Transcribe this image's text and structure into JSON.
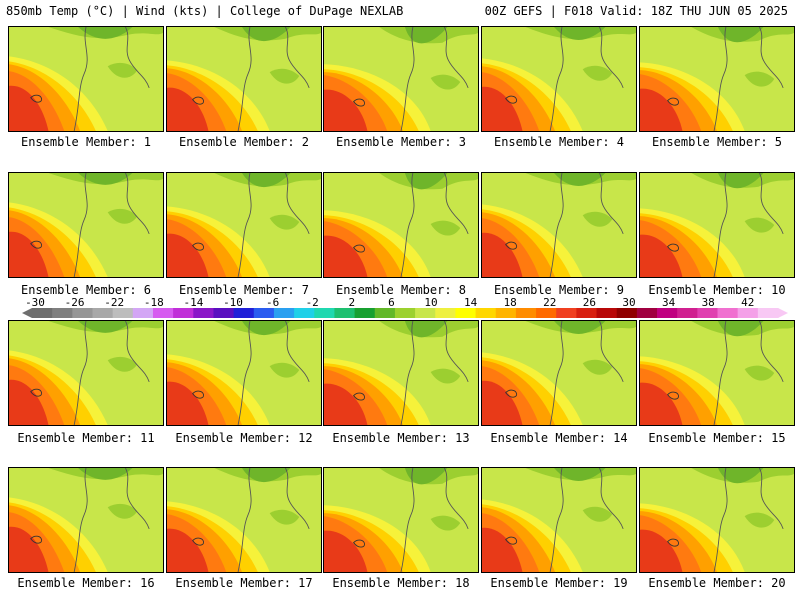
{
  "header": {
    "left": "850mb Temp (°C) | Wind (kts) | College of DuPage NEXLAB",
    "right": "00Z GEFS | F018 Valid: 18Z THU JUN 05 2025"
  },
  "members": [
    "Ensemble Member: 1",
    "Ensemble Member: 2",
    "Ensemble Member: 3",
    "Ensemble Member: 4",
    "Ensemble Member: 5",
    "Ensemble Member: 6",
    "Ensemble Member: 7",
    "Ensemble Member: 8",
    "Ensemble Member: 9",
    "Ensemble Member: 10",
    "Ensemble Member: 11",
    "Ensemble Member: 12",
    "Ensemble Member: 13",
    "Ensemble Member: 14",
    "Ensemble Member: 15",
    "Ensemble Member: 16",
    "Ensemble Member: 17",
    "Ensemble Member: 18",
    "Ensemble Member: 19",
    "Ensemble Member: 20"
  ],
  "colorbar": {
    "labels": [
      "-30",
      "-26",
      "-22",
      "-18",
      "-14",
      "-10",
      "-6",
      "-2",
      "2",
      "6",
      "10",
      "14",
      "18",
      "22",
      "26",
      "30",
      "34",
      "38",
      "42"
    ],
    "colors": [
      "#6e6e6e",
      "#7f7f7f",
      "#969696",
      "#a8a8a8",
      "#bdbdbd",
      "#d3a6f5",
      "#d65bf0",
      "#c02fd8",
      "#8a17c8",
      "#5a10c0",
      "#2020d8",
      "#2a5cf0",
      "#2aa0f0",
      "#20d0e8",
      "#20d8b0",
      "#1ec070",
      "#18a030",
      "#62b828",
      "#9cd12e",
      "#c8e64a",
      "#eef040",
      "#ffff00",
      "#ffd700",
      "#ffb400",
      "#ff8c00",
      "#ff6a00",
      "#f04020",
      "#d82010",
      "#b80808",
      "#900000",
      "#a00040",
      "#c00080",
      "#d02090",
      "#e040b0",
      "#f070d0",
      "#f4a0e8",
      "#f8c8f4"
    ]
  },
  "palette": {
    "hot": "#e83a18",
    "warm": "#ff7a10",
    "orange": "#ffa000",
    "gold": "#ffd000",
    "yellow": "#f6f23a",
    "lime": "#c8e64a",
    "green": "#9ccf30",
    "dark_green": "#6fb52a"
  }
}
